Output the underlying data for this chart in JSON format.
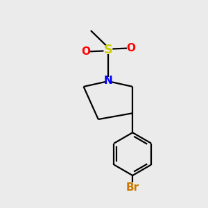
{
  "background_color": "#ebebeb",
  "bond_color": "#000000",
  "N_color": "#0000ff",
  "O_color": "#ff0000",
  "S_color": "#cccc00",
  "Br_color": "#cc7700",
  "line_width": 1.6,
  "font_size_atoms": 11,
  "font_size_br": 10,
  "xlim": [
    0,
    10
  ],
  "ylim": [
    0,
    10
  ]
}
